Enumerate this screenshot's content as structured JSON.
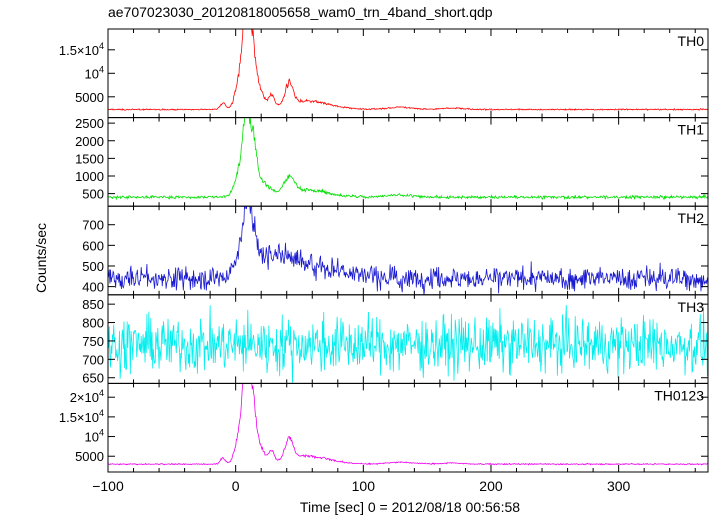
{
  "title": "ae707023030_20120818005658_wam0_trn_4band_short.qdp",
  "ylabel": "Counts/sec",
  "xlabel": "Time [sec] 0 = 2012/08/18 00:56:58",
  "chart_data": {
    "type": "line",
    "title": "ae707023030_20120818005658_wam0_trn_4band_short.qdp",
    "xlabel": "Time [sec] 0 = 2012/08/18 00:56:58",
    "ylabel": "Counts/sec",
    "xlim": [
      -100,
      370
    ],
    "xticks": [
      -100,
      0,
      100,
      200,
      300
    ],
    "xtick_labels": [
      "−100",
      "0",
      "100",
      "200",
      "300"
    ],
    "grid": false,
    "panels": [
      {
        "name": "TH0",
        "color": "#ff0000",
        "ylim": [
          1000,
          19000
        ],
        "ticks": [
          5000,
          10000,
          15000
        ],
        "tick_labels": [
          [
            "5000",
            ""
          ],
          [
            "10",
            "4"
          ],
          [
            "1.5×10",
            "4"
          ]
        ],
        "baseline": 2300,
        "noise": 70,
        "features": [
          {
            "t": -10,
            "amp": 1300,
            "w": 2
          },
          {
            "t": 5,
            "amp": 9000,
            "w": 4
          },
          {
            "t": 8,
            "amp": 15000,
            "w": 2
          },
          {
            "t": 12,
            "amp": 14000,
            "w": 3
          },
          {
            "t": 18,
            "amp": 4000,
            "w": 4
          },
          {
            "t": 28,
            "amp": 2500,
            "w": 2
          },
          {
            "t": 42,
            "amp": 4500,
            "w": 3
          },
          {
            "t": 55,
            "amp": 1800,
            "w": 18
          },
          {
            "t": 130,
            "amp": 500,
            "w": 10
          },
          {
            "t": 170,
            "amp": 300,
            "w": 8
          }
        ]
      },
      {
        "name": "TH1",
        "color": "#00e000",
        "ylim": [
          200,
          2600
        ],
        "ticks": [
          500,
          1000,
          1500,
          2000,
          2500
        ],
        "tick_labels": [
          [
            "500",
            ""
          ],
          [
            "1000",
            ""
          ],
          [
            "1500",
            ""
          ],
          [
            "2000",
            ""
          ],
          [
            "2500",
            ""
          ]
        ],
        "baseline": 400,
        "noise": 22,
        "features": [
          {
            "t": 4,
            "amp": 900,
            "w": 4
          },
          {
            "t": 8,
            "amp": 1700,
            "w": 2
          },
          {
            "t": 13,
            "amp": 1600,
            "w": 3
          },
          {
            "t": 20,
            "amp": 400,
            "w": 6
          },
          {
            "t": 42,
            "amp": 450,
            "w": 4
          },
          {
            "t": 55,
            "amp": 200,
            "w": 18
          },
          {
            "t": 130,
            "amp": 60,
            "w": 10
          }
        ]
      },
      {
        "name": "TH2",
        "color": "#1a1ad0",
        "ylim": [
          370,
          780
        ],
        "ticks": [
          400,
          500,
          600,
          700
        ],
        "tick_labels": [
          [
            "400",
            ""
          ],
          [
            "500",
            ""
          ],
          [
            "600",
            ""
          ],
          [
            "700",
            ""
          ]
        ],
        "baseline": 440,
        "noise": 28,
        "features": [
          {
            "t": 5,
            "amp": 130,
            "w": 5
          },
          {
            "t": 11,
            "amp": 250,
            "w": 4
          },
          {
            "t": 30,
            "amp": 100,
            "w": 15
          },
          {
            "t": 65,
            "amp": 50,
            "w": 25
          }
        ]
      },
      {
        "name": "TH3",
        "color": "#00eeee",
        "ylim": [
          640,
          870
        ],
        "ticks": [
          650,
          700,
          750,
          800,
          850
        ],
        "tick_labels": [
          [
            "650",
            ""
          ],
          [
            "700",
            ""
          ],
          [
            "750",
            ""
          ],
          [
            "800",
            ""
          ],
          [
            "850",
            ""
          ]
        ],
        "baseline": 740,
        "noise": 38,
        "features": []
      },
      {
        "name": "TH0123",
        "color": "#ee00ee",
        "ylim": [
          1500,
          23000
        ],
        "ticks": [
          5000,
          10000,
          15000,
          20000
        ],
        "tick_labels": [
          [
            "5000",
            ""
          ],
          [
            "10",
            "4"
          ],
          [
            "1.5×10",
            "4"
          ],
          [
            "2×10",
            "4"
          ]
        ],
        "baseline": 3000,
        "noise": 80,
        "features": [
          {
            "t": -10,
            "amp": 1500,
            "w": 2
          },
          {
            "t": 5,
            "amp": 11000,
            "w": 4
          },
          {
            "t": 8,
            "amp": 18000,
            "w": 2
          },
          {
            "t": 12,
            "amp": 17000,
            "w": 3
          },
          {
            "t": 18,
            "amp": 4500,
            "w": 4
          },
          {
            "t": 28,
            "amp": 2800,
            "w": 2
          },
          {
            "t": 42,
            "amp": 5500,
            "w": 3
          },
          {
            "t": 55,
            "amp": 2000,
            "w": 18
          },
          {
            "t": 130,
            "amp": 500,
            "w": 10
          },
          {
            "t": 170,
            "amp": 300,
            "w": 8
          }
        ]
      }
    ]
  }
}
